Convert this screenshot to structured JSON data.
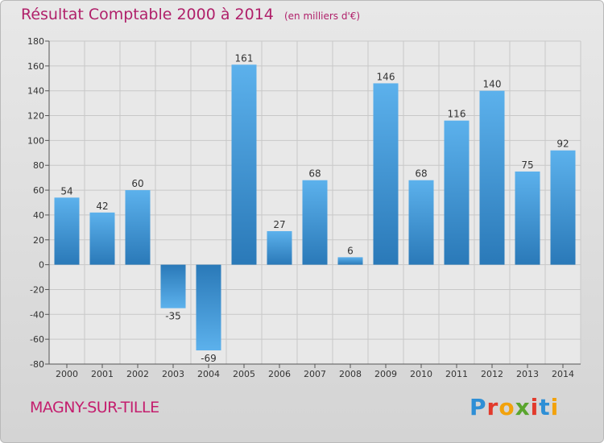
{
  "title": "Résultat Comptable 2000 à 2014",
  "subtitle": "(en milliers d'€)",
  "commune": "MAGNY-SUR-TILLE",
  "logo": {
    "letters": [
      "P",
      "r",
      "o",
      "x",
      "i",
      "t",
      "i"
    ],
    "colors": [
      "#2e8fd6",
      "#e23a2c",
      "#f2a20c",
      "#5aa52e",
      "#e23a2c",
      "#2e8fd6",
      "#f2a20c"
    ]
  },
  "colors": {
    "bar_dark": "#2a79b8",
    "bar_light": "#5cb1ec",
    "title": "#b0206a"
  },
  "chart_data": {
    "type": "bar",
    "categories": [
      "2000",
      "2001",
      "2002",
      "2003",
      "2004",
      "2005",
      "2006",
      "2007",
      "2008",
      "2009",
      "2010",
      "2011",
      "2012",
      "2013",
      "2014"
    ],
    "values": [
      54,
      42,
      60,
      -35,
      -69,
      161,
      27,
      68,
      6,
      146,
      68,
      116,
      140,
      75,
      92
    ],
    "value_labels": [
      "54",
      "42",
      "60",
      "-35",
      "-69",
      "161",
      "27",
      "68",
      "6",
      "146",
      "68",
      "116",
      "140",
      "75",
      "92"
    ],
    "y_ticks": [
      "180",
      "160",
      "140",
      "120",
      "100",
      "80",
      "60",
      "40",
      "20",
      "0",
      "-20",
      "-40",
      "-60",
      "-80"
    ],
    "ylim": [
      -80,
      180
    ],
    "xlabel": "",
    "ylabel": "",
    "grid": true
  }
}
